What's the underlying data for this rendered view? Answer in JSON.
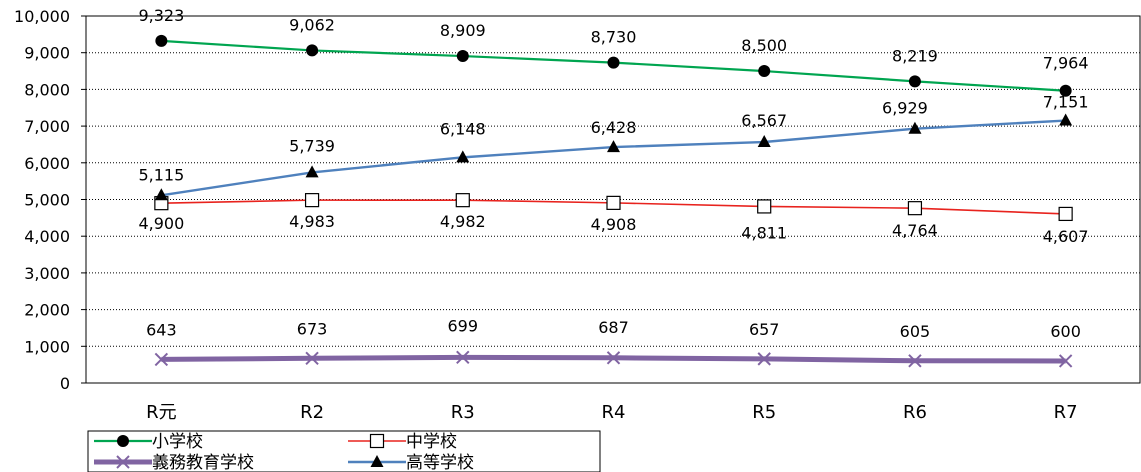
{
  "chart_data": {
    "type": "line",
    "title": "",
    "xlabel": "",
    "ylabel": "",
    "categories": [
      "R元",
      "R2",
      "R3",
      "R4",
      "R5",
      "R6",
      "R7"
    ],
    "ylim": [
      0,
      10000
    ],
    "yticks": [
      0,
      1000,
      2000,
      3000,
      4000,
      5000,
      6000,
      7000,
      8000,
      9000,
      10000
    ],
    "ytick_labels": [
      "0",
      "1,000",
      "2,000",
      "3,000",
      "4,000",
      "5,000",
      "6,000",
      "7,000",
      "8,000",
      "9,000",
      "10,000"
    ],
    "grid": "horizontal-dotted",
    "legend_position": "bottom-left",
    "series": [
      {
        "name": "小学校",
        "color": "#00a550",
        "marker": "circle-filled",
        "values": [
          9323,
          9062,
          8909,
          8730,
          8500,
          8219,
          7964
        ],
        "labels": [
          "9,323",
          "9,062",
          "8,909",
          "8,730",
          "8,500",
          "8,219",
          "7,964"
        ]
      },
      {
        "name": "中学校",
        "color": "#e8231e",
        "marker": "square-open",
        "values": [
          4900,
          4983,
          4982,
          4908,
          4811,
          4764,
          4607
        ],
        "labels": [
          "4,900",
          "4,983",
          "4,982",
          "4,908",
          "4,811",
          "4,764",
          "4,607"
        ]
      },
      {
        "name": "義務教育学校",
        "color": "#8064a2",
        "marker": "x",
        "values": [
          643,
          673,
          699,
          687,
          657,
          605,
          600
        ],
        "labels": [
          "643",
          "673",
          "699",
          "687",
          "657",
          "605",
          "600"
        ]
      },
      {
        "name": "高等学校",
        "color": "#4f81bd",
        "marker": "triangle-filled",
        "values": [
          5115,
          5739,
          6148,
          6428,
          6567,
          6929,
          7151
        ],
        "labels": [
          "5,115",
          "5,739",
          "6,148",
          "6,428",
          "6,567",
          "6,929",
          "7,151"
        ]
      }
    ]
  }
}
